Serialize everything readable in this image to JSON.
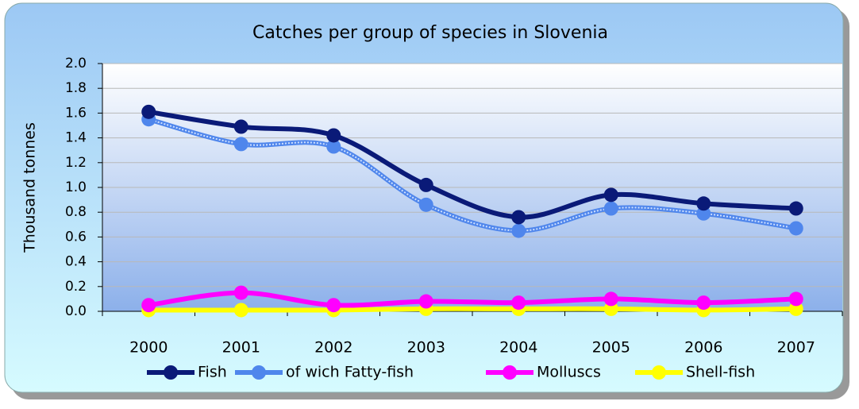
{
  "chart_data": {
    "type": "line",
    "title": "Catches per group of species in Slovenia",
    "y_label": "Thousand tonnes",
    "categories": [
      "2000",
      "2001",
      "2002",
      "2003",
      "2004",
      "2005",
      "2006",
      "2007"
    ],
    "series": [
      {
        "name": "Fish",
        "color": "#0a1a78",
        "values": [
          1.61,
          1.49,
          1.42,
          1.02,
          0.76,
          0.94,
          0.87,
          0.83
        ]
      },
      {
        "name": "of wich Fatty-fish",
        "color": "#4f86ec",
        "values": [
          1.55,
          1.35,
          1.33,
          0.86,
          0.65,
          0.83,
          0.79,
          0.67
        ]
      },
      {
        "name": "Molluscs",
        "color": "#ff00ff",
        "values": [
          0.05,
          0.15,
          0.05,
          0.08,
          0.07,
          0.1,
          0.07,
          0.1
        ]
      },
      {
        "name": "Shell-fish",
        "color": "#ffff00",
        "values": [
          0.01,
          0.01,
          0.01,
          0.02,
          0.02,
          0.02,
          0.01,
          0.02
        ]
      }
    ],
    "ylim": [
      0,
      2
    ],
    "yticks": [
      {
        "value": 0,
        "label": "0.0"
      },
      0.2,
      0.4,
      0.6,
      0.8,
      {
        "value": 1,
        "label": "1.0"
      },
      1.2,
      1.4,
      1.6,
      1.8,
      {
        "value": 2,
        "label": "2.0"
      }
    ],
    "grid": true,
    "legend": "bottom"
  }
}
